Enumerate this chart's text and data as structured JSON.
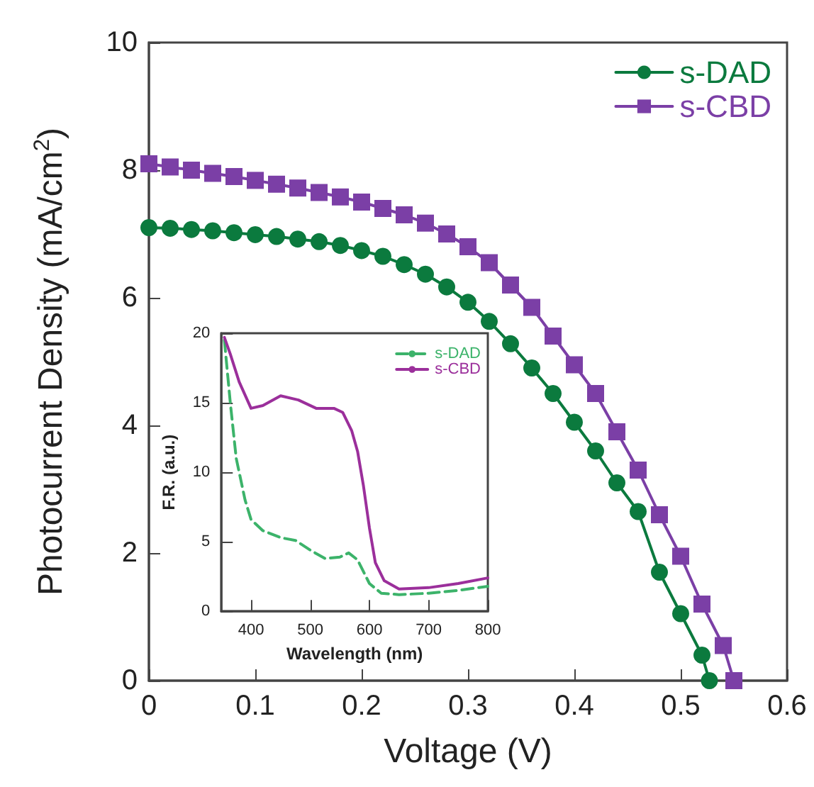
{
  "chart_data": [
    {
      "type": "line",
      "xlabel": "Voltage (V)",
      "ylabel": "Photocurrent Density (mA/cm$^{2}$)",
      "xlim": [
        0,
        0.6
      ],
      "xticks": [
        0,
        0.1,
        0.2,
        0.3,
        0.4,
        0.5,
        0.6
      ],
      "ylim": [
        0,
        10
      ],
      "yticks": [
        0,
        2,
        4,
        6,
        8,
        10
      ],
      "legend": "top right",
      "grid": false,
      "series": [
        {
          "name": "s-DAD",
          "color": "#0b7a3e",
          "marker": "circle",
          "x": [
            0,
            0.02,
            0.04,
            0.06,
            0.08,
            0.1,
            0.12,
            0.14,
            0.16,
            0.18,
            0.2,
            0.22,
            0.24,
            0.26,
            0.28,
            0.3,
            0.32,
            0.34,
            0.36,
            0.38,
            0.4,
            0.42,
            0.44,
            0.46,
            0.48,
            0.5,
            0.52,
            0.527
          ],
          "values": [
            7.1,
            7.09,
            7.07,
            7.05,
            7.02,
            6.99,
            6.96,
            6.92,
            6.88,
            6.82,
            6.74,
            6.65,
            6.52,
            6.37,
            6.17,
            5.93,
            5.63,
            5.28,
            4.9,
            4.5,
            4.05,
            3.6,
            3.1,
            2.65,
            1.7,
            1.05,
            0.4,
            0
          ]
        },
        {
          "name": "s-CBD",
          "color": "#7b3fa6",
          "marker": "square",
          "x": [
            0,
            0.02,
            0.04,
            0.06,
            0.08,
            0.1,
            0.12,
            0.14,
            0.16,
            0.18,
            0.2,
            0.22,
            0.24,
            0.26,
            0.28,
            0.3,
            0.32,
            0.34,
            0.36,
            0.38,
            0.4,
            0.42,
            0.44,
            0.46,
            0.48,
            0.5,
            0.52,
            0.54,
            0.55
          ],
          "values": [
            8.1,
            8.05,
            8.0,
            7.95,
            7.9,
            7.84,
            7.78,
            7.72,
            7.65,
            7.58,
            7.5,
            7.4,
            7.3,
            7.17,
            7.0,
            6.8,
            6.55,
            6.2,
            5.85,
            5.4,
            4.95,
            4.5,
            3.9,
            3.3,
            2.6,
            1.95,
            1.2,
            0.55,
            0
          ]
        }
      ]
    },
    {
      "type": "line",
      "xlabel": "Wavelength (nm)",
      "ylabel": "F.R. (a.u.)",
      "xlim": [
        350,
        800
      ],
      "xticks": [
        400,
        500,
        600,
        700,
        800
      ],
      "ylim": [
        0,
        20
      ],
      "yticks": [
        0,
        5,
        10,
        15,
        20
      ],
      "legend": "top right",
      "grid": false,
      "series": [
        {
          "name": "s-DAD",
          "color": "#3cb36a",
          "line_style": "dashed",
          "x": [
            355,
            365,
            375,
            390,
            400,
            420,
            450,
            475,
            500,
            525,
            550,
            565,
            580,
            600,
            620,
            650,
            700,
            750,
            800
          ],
          "values": [
            19.5,
            15,
            11,
            8,
            6.6,
            5.8,
            5.3,
            5.1,
            4.4,
            3.8,
            3.9,
            4.2,
            3.7,
            2.0,
            1.3,
            1.2,
            1.3,
            1.5,
            1.8
          ]
        },
        {
          "name": "s-CBD",
          "color": "#9b2f9b",
          "line_style": "solid",
          "x": [
            355,
            365,
            380,
            400,
            420,
            450,
            480,
            510,
            540,
            555,
            570,
            580,
            590,
            600,
            610,
            625,
            650,
            700,
            750,
            800
          ],
          "values": [
            19.7,
            18.5,
            16.5,
            14.6,
            14.8,
            15.5,
            15.2,
            14.6,
            14.6,
            14.3,
            13,
            11.5,
            9,
            6,
            3.5,
            2.2,
            1.6,
            1.7,
            2.0,
            2.4
          ]
        }
      ]
    }
  ]
}
